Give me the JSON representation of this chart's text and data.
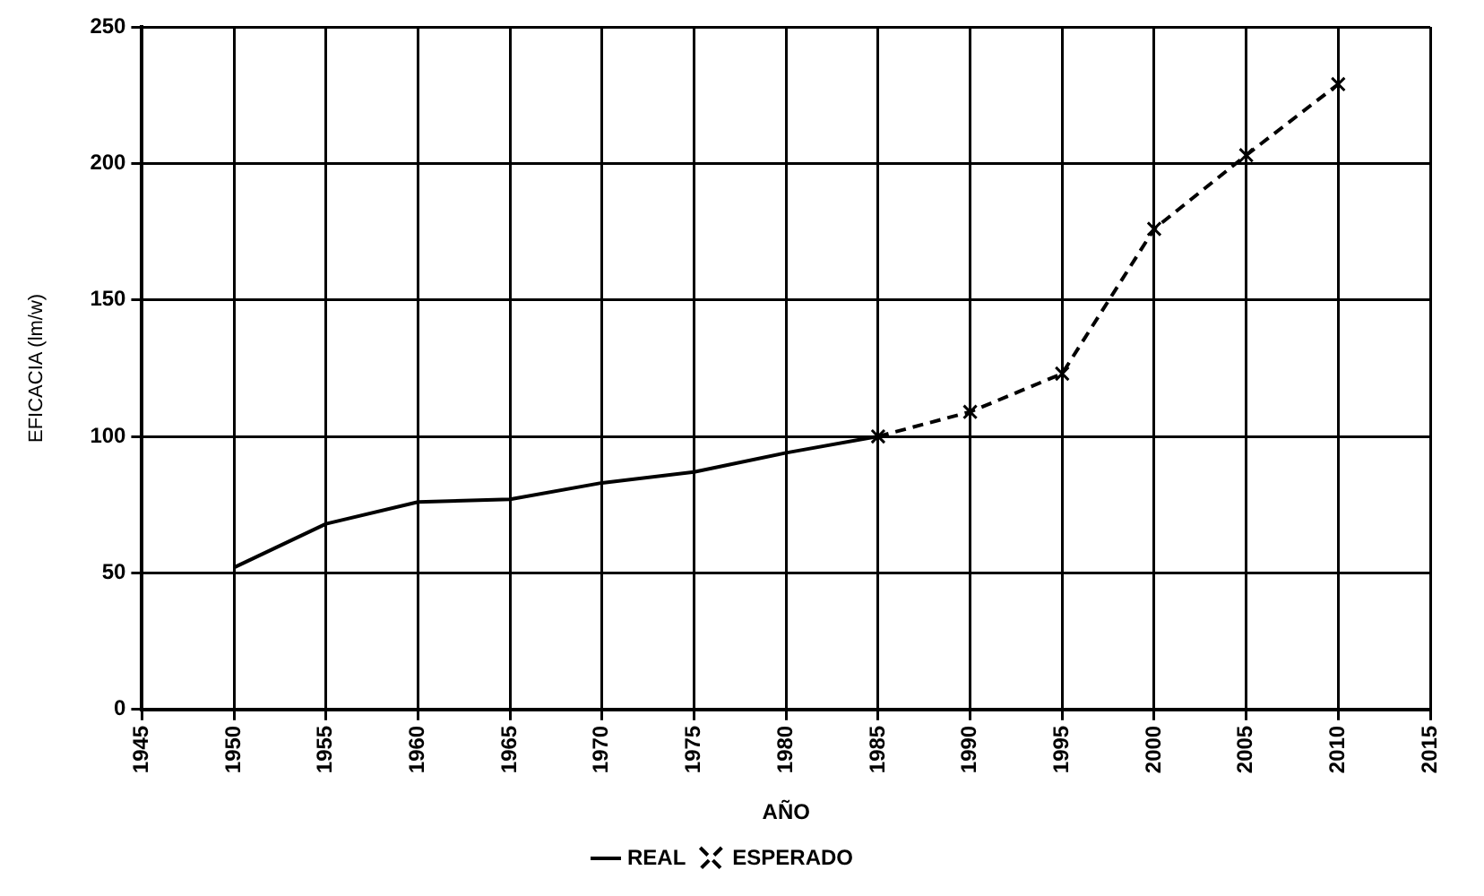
{
  "chart_data": {
    "type": "line",
    "xlabel": "AÑO",
    "ylabel": "EFICACIA (lm/w)",
    "xlim": [
      1945,
      2015
    ],
    "xticks": [
      1945,
      1950,
      1955,
      1960,
      1965,
      1970,
      1975,
      1980,
      1985,
      1990,
      1995,
      2000,
      2005,
      2010,
      2015
    ],
    "ylim": [
      0,
      250
    ],
    "yticks": [
      0,
      50,
      100,
      150,
      200,
      250
    ],
    "grid": true,
    "legend": "bottom",
    "series": [
      {
        "name": "REAL",
        "color": "#000000",
        "marker": "none",
        "line_style": "solid",
        "x": [
          1950,
          1955,
          1960,
          1965,
          1970,
          1975,
          1980,
          1985
        ],
        "values": [
          52,
          68,
          76,
          77,
          83,
          87,
          94,
          100
        ]
      },
      {
        "name": "ESPERADO",
        "color": "#000000",
        "marker": "cross",
        "line_style": "dashed",
        "x": [
          1985,
          1990,
          1995,
          2000,
          2005,
          2010
        ],
        "values": [
          100,
          109,
          123,
          176,
          203,
          229
        ]
      }
    ]
  }
}
